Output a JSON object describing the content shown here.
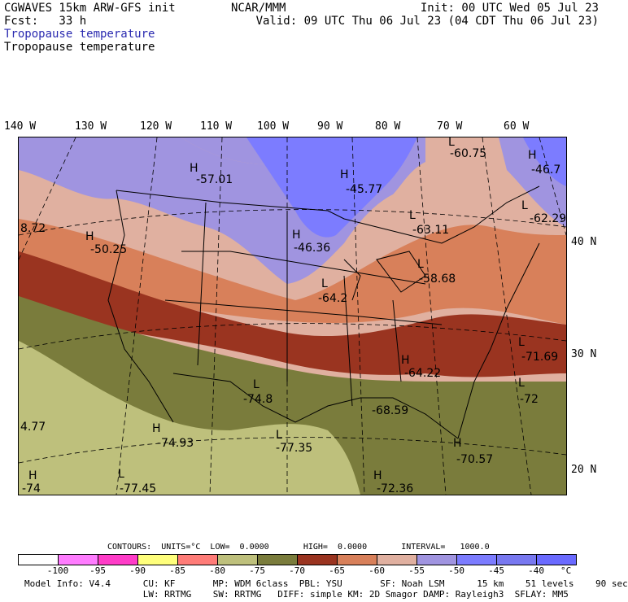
{
  "header": {
    "left1": "CGWAVES 15km ARW-GFS init",
    "left2": "Fcst:   33 h",
    "center": "NCAR/MMM",
    "init": "Init: 00 UTC Wed 05 Jul 23",
    "valid": "Valid: 09 UTC Thu 06 Jul 23 (04 CDT Thu 06 Jul 23)",
    "field1": "Tropopause temperature",
    "field2": "Tropopause temperature"
  },
  "longitudes": [
    "140 W",
    "130 W",
    "120 W",
    "110 W",
    "100 W",
    "90 W",
    "80 W",
    "70 W",
    "60 W"
  ],
  "latitudes": [
    "40 N",
    "30 N",
    "20 N"
  ],
  "map_labels": [
    {
      "type": "H",
      "value": "-57.01"
    },
    {
      "type": "H",
      "value": "-45.77"
    },
    {
      "type": "L",
      "value": "-60.75"
    },
    {
      "type": "H",
      "value": "-46.7"
    },
    {
      "type": "L",
      "value": "-62.29"
    },
    {
      "type": "",
      "value": "8.72"
    },
    {
      "type": "H",
      "value": "-50.25"
    },
    {
      "type": "H",
      "value": "-46.36"
    },
    {
      "type": "L",
      "value": "-63.11"
    },
    {
      "type": "L",
      "value": "-58.68"
    },
    {
      "type": "L",
      "value": "-64.2"
    },
    {
      "type": "L",
      "value": "-71.69"
    },
    {
      "type": "H",
      "value": "-64.22"
    },
    {
      "type": "L",
      "value": "-72"
    },
    {
      "type": "L",
      "value": "-74.8"
    },
    {
      "type": "",
      "value": "-68.59"
    },
    {
      "type": "",
      "value": "4.77"
    },
    {
      "type": "H",
      "value": "-74.93"
    },
    {
      "type": "L",
      "value": "-77.35"
    },
    {
      "type": "H",
      "value": "-70.57"
    },
    {
      "type": "H",
      "value": "-74"
    },
    {
      "type": "L",
      "value": "-77.45"
    },
    {
      "type": "H",
      "value": "-72.36"
    }
  ],
  "legend": {
    "contours": "CONTOURS:  UNITS=°C  LOW=  0.0000       HIGH=  0.0000       INTERVAL=   1000.0",
    "ticks": [
      "-100",
      "-95",
      "-90",
      "-85",
      "-80",
      "-75",
      "-70",
      "-65",
      "-60",
      "-55",
      "-50",
      "-45",
      "-40"
    ],
    "unit": "°C",
    "colors": [
      "#ffffff",
      "#ff7cff",
      "#ff3cc8",
      "#ffff7c",
      "#ff7c78",
      "#bec07c",
      "#7a7c3c",
      "#9a3420",
      "#d8805a",
      "#e0b0a0",
      "#a094e0",
      "#7c7cff",
      "#7878f0",
      "#6a6aff"
    ]
  },
  "model_info": {
    "line1": "Model Info: V4.4      CU: KF       MP: WDM 6class  PBL: YSU       SF: Noah LSM      15 km    51 levels    90 sec",
    "line2": "                      LW: RRTMG    SW: RRTMG   DIFF: simple KM: 2D Smagor DAMP: Rayleigh3  SFLAY: MM5"
  }
}
